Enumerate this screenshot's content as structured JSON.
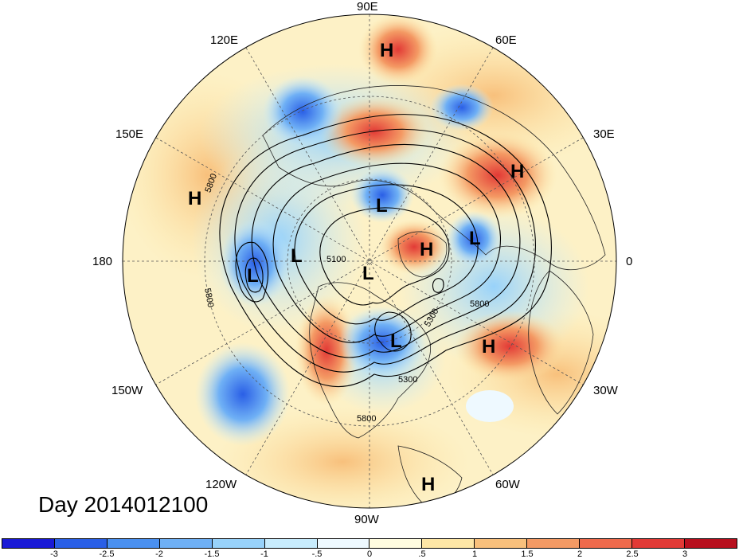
{
  "title": "Day 2014012100",
  "longitude_labels": {
    "e90": "90E",
    "e120": "120E",
    "e60": "60E",
    "e150": "150E",
    "e30": "30E",
    "w180": "180",
    "zero": "0",
    "w150": "150W",
    "w30": "30W",
    "w120": "120W",
    "w60": "60W",
    "w90": "90W"
  },
  "pressure_centers": {
    "h1": "H",
    "h2": "H",
    "h3": "H",
    "h4": "H",
    "h5": "H",
    "h6": "H",
    "l1": "L",
    "l2": "L",
    "l3": "L",
    "l4": "L",
    "l5": "L",
    "l6": "L"
  },
  "contour_labels": {
    "c1": "5800",
    "c2": "5800",
    "c3": "5800",
    "c4": "5800",
    "c5": "5300",
    "c6": "5100",
    "c7": "5300"
  },
  "colorbar": {
    "colors": [
      "#1a1ad6",
      "#2a5fe6",
      "#4a90f0",
      "#6fb0f5",
      "#98d2fa",
      "#c8ecfd",
      "#eef9ff",
      "#fffce0",
      "#fde6a6",
      "#f8c07c",
      "#f49a64",
      "#ef6a4c",
      "#e23a36",
      "#b8101e"
    ],
    "ticks": [
      "-3",
      "-2.5",
      "-2",
      "-1.5",
      "-1",
      "-.5",
      "0",
      ".5",
      "1",
      "1.5",
      "2",
      "2.5",
      "3"
    ]
  },
  "colors": {
    "coast": "#222222",
    "contour": "#000000",
    "grid": "#555555"
  }
}
